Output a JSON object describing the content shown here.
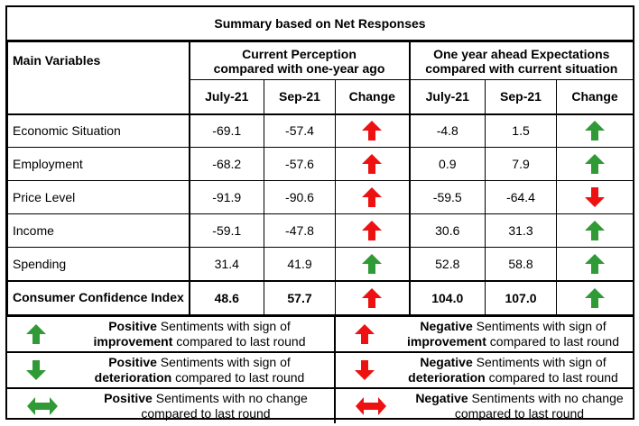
{
  "title": "Summary based on Net Responses",
  "headers": {
    "main_variables": "Main Variables",
    "current_group": [
      "Current Perception",
      "compared with one-year ago"
    ],
    "ahead_group": [
      "One year ahead Expectations",
      "compared with current situation"
    ],
    "cols": [
      "July-21",
      "Sep-21",
      "Change",
      "July-21",
      "Sep-21",
      "Change"
    ]
  },
  "rows": [
    {
      "label": "Economic Situation",
      "cur_jul": "-69.1",
      "cur_sep": "-57.4",
      "cur_change": "red-up",
      "exp_jul": "-4.8",
      "exp_sep": "1.5",
      "exp_change": "green-up"
    },
    {
      "label": "Employment",
      "cur_jul": "-68.2",
      "cur_sep": "-57.6",
      "cur_change": "red-up",
      "exp_jul": "0.9",
      "exp_sep": "7.9",
      "exp_change": "green-up"
    },
    {
      "label": "Price Level",
      "cur_jul": "-91.9",
      "cur_sep": "-90.6",
      "cur_change": "red-up",
      "exp_jul": "-59.5",
      "exp_sep": "-64.4",
      "exp_change": "red-down"
    },
    {
      "label": "Income",
      "cur_jul": "-59.1",
      "cur_sep": "-47.8",
      "cur_change": "red-up",
      "exp_jul": "30.6",
      "exp_sep": "31.3",
      "exp_change": "green-up"
    },
    {
      "label": "Spending",
      "cur_jul": "31.4",
      "cur_sep": "41.9",
      "cur_change": "green-up",
      "exp_jul": "52.8",
      "exp_sep": "58.8",
      "exp_change": "green-up"
    }
  ],
  "cci": {
    "label": "Consumer Confidence Index",
    "cur_jul": "48.6",
    "cur_sep": "57.7",
    "cur_change": "red-up",
    "exp_jul": "104.0",
    "exp_sep": "107.0",
    "exp_change": "green-up"
  },
  "legend": {
    "positive_word": "Positive",
    "negative_word": "Negative",
    "sign_of": " Sentiments with sign of",
    "improvement": "improvement",
    "deterioration": "deterioration",
    "compared": " compared to last round",
    "no_change": " Sentiments with no change",
    "compared_full": "compared to last round"
  },
  "colors": {
    "green": "#2f9a36",
    "red": "#ee1111"
  }
}
